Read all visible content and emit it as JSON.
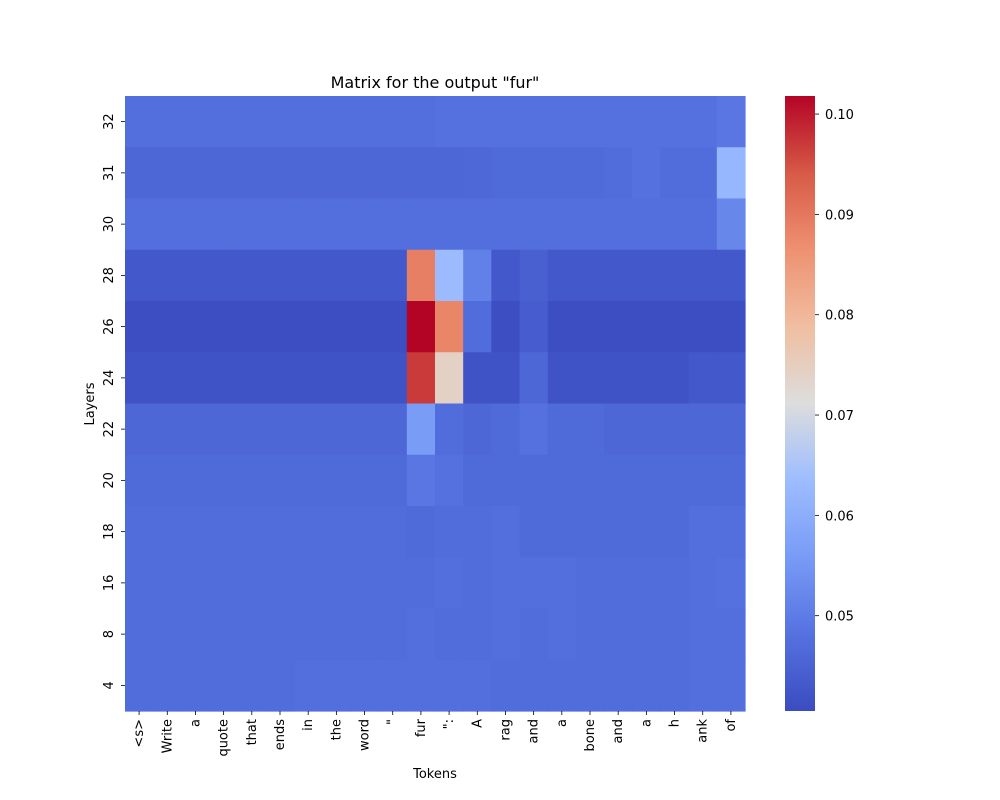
{
  "chart_data": {
    "type": "heatmap",
    "title": "Matrix for the output \"fur\"",
    "xlabel": "Tokens",
    "ylabel": "Layers",
    "x_tokens": [
      "<s>",
      "Write",
      "a",
      "quote",
      "that",
      "ends",
      "in",
      "the",
      "word",
      "\"",
      "fur",
      "\":",
      "A",
      "rag",
      "and",
      "a",
      "bone",
      "and",
      "a",
      "h",
      "ank",
      "of"
    ],
    "y_layers": [
      "32",
      "31",
      "30",
      "28",
      "26",
      "24",
      "22",
      "20",
      "18",
      "16",
      "8",
      "4"
    ],
    "values": [
      [
        0.0475,
        0.0475,
        0.0475,
        0.0475,
        0.0475,
        0.0475,
        0.0475,
        0.0475,
        0.0475,
        0.0475,
        0.0475,
        0.048,
        0.048,
        0.048,
        0.048,
        0.048,
        0.048,
        0.048,
        0.048,
        0.048,
        0.048,
        0.049
      ],
      [
        0.046,
        0.046,
        0.046,
        0.046,
        0.046,
        0.046,
        0.046,
        0.046,
        0.046,
        0.046,
        0.046,
        0.046,
        0.0462,
        0.0465,
        0.0465,
        0.0465,
        0.0465,
        0.047,
        0.048,
        0.047,
        0.047,
        0.062
      ],
      [
        0.0475,
        0.0475,
        0.0475,
        0.0475,
        0.0475,
        0.0475,
        0.0475,
        0.0475,
        0.0475,
        0.0475,
        0.0475,
        0.0475,
        0.0475,
        0.0475,
        0.0475,
        0.0475,
        0.0475,
        0.0475,
        0.0475,
        0.0475,
        0.0475,
        0.052
      ],
      [
        0.043,
        0.043,
        0.043,
        0.043,
        0.043,
        0.043,
        0.043,
        0.043,
        0.043,
        0.043,
        0.089,
        0.063,
        0.051,
        0.043,
        0.0445,
        0.043,
        0.043,
        0.043,
        0.043,
        0.043,
        0.043,
        0.043
      ],
      [
        0.041,
        0.041,
        0.041,
        0.041,
        0.041,
        0.041,
        0.041,
        0.041,
        0.041,
        0.041,
        0.102,
        0.088,
        0.047,
        0.041,
        0.044,
        0.041,
        0.041,
        0.041,
        0.041,
        0.041,
        0.041,
        0.041
      ],
      [
        0.042,
        0.042,
        0.042,
        0.042,
        0.042,
        0.042,
        0.042,
        0.042,
        0.042,
        0.042,
        0.097,
        0.074,
        0.042,
        0.042,
        0.046,
        0.042,
        0.042,
        0.042,
        0.042,
        0.042,
        0.043,
        0.043
      ],
      [
        0.046,
        0.046,
        0.046,
        0.046,
        0.046,
        0.046,
        0.046,
        0.046,
        0.046,
        0.046,
        0.056,
        0.047,
        0.046,
        0.0465,
        0.048,
        0.0465,
        0.0465,
        0.046,
        0.046,
        0.046,
        0.046,
        0.046
      ],
      [
        0.0465,
        0.0465,
        0.0465,
        0.0465,
        0.0465,
        0.0465,
        0.0465,
        0.0465,
        0.0465,
        0.0465,
        0.049,
        0.048,
        0.0465,
        0.0465,
        0.0465,
        0.0465,
        0.0465,
        0.0465,
        0.0465,
        0.0465,
        0.0465,
        0.0465
      ],
      [
        0.047,
        0.047,
        0.047,
        0.047,
        0.047,
        0.047,
        0.047,
        0.047,
        0.047,
        0.047,
        0.0465,
        0.047,
        0.047,
        0.0475,
        0.0465,
        0.0465,
        0.0465,
        0.0465,
        0.0465,
        0.0465,
        0.0475,
        0.0475
      ],
      [
        0.047,
        0.047,
        0.047,
        0.047,
        0.047,
        0.047,
        0.047,
        0.047,
        0.047,
        0.047,
        0.047,
        0.0475,
        0.047,
        0.0475,
        0.0475,
        0.0475,
        0.047,
        0.047,
        0.047,
        0.047,
        0.0475,
        0.048
      ],
      [
        0.047,
        0.047,
        0.047,
        0.047,
        0.047,
        0.047,
        0.047,
        0.047,
        0.047,
        0.047,
        0.0475,
        0.047,
        0.047,
        0.0475,
        0.047,
        0.0475,
        0.047,
        0.047,
        0.047,
        0.047,
        0.0475,
        0.0475
      ],
      [
        0.047,
        0.047,
        0.047,
        0.047,
        0.047,
        0.047,
        0.0475,
        0.0475,
        0.0475,
        0.0475,
        0.0475,
        0.0475,
        0.0475,
        0.047,
        0.047,
        0.047,
        0.047,
        0.047,
        0.047,
        0.047,
        0.0475,
        0.0475
      ]
    ],
    "colormap": "coolwarm",
    "vmin": 0.0405,
    "vmax": 0.1018,
    "colorbar_ticks": [
      0.05,
      0.06,
      0.07,
      0.08,
      0.09,
      0.1
    ],
    "colorbar_tick_labels": [
      "0.05",
      "0.06",
      "0.07",
      "0.08",
      "0.09",
      "0.10"
    ],
    "grid": false,
    "legend": "colorbar at right"
  }
}
